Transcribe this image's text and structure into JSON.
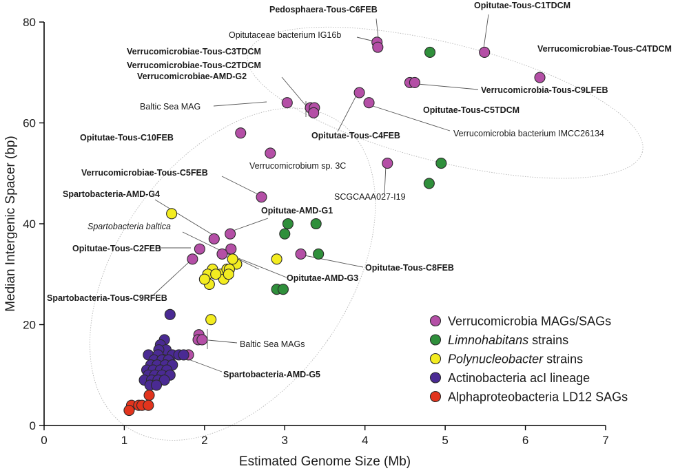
{
  "chart_data": {
    "type": "scatter",
    "xlabel": "Estimated Genome Size (Mb)",
    "ylabel": "Median Intergenic Spacer (bp)",
    "xlim": [
      0,
      7
    ],
    "ylim": [
      0,
      80
    ],
    "xticks": [
      0,
      1,
      2,
      3,
      4,
      5,
      6,
      7
    ],
    "yticks": [
      0,
      20,
      40,
      60,
      80
    ],
    "legend_position": "bottom-right",
    "colors": {
      "verruco": "#b44fa6",
      "limno": "#2f8f3b",
      "polynuc": "#f3ec20",
      "actino": "#4a2a93",
      "alpha": "#e2341d"
    },
    "series": [
      {
        "key": "verruco",
        "name": "Verrucomicrobia MAGs/SAGs",
        "points": [
          [
            4.15,
            76
          ],
          [
            4.16,
            75
          ],
          [
            5.49,
            74
          ],
          [
            6.18,
            69
          ],
          [
            4.56,
            68
          ],
          [
            4.62,
            68
          ],
          [
            3.93,
            66
          ],
          [
            4.05,
            64
          ],
          [
            3.32,
            63
          ],
          [
            3.37,
            63
          ],
          [
            3.36,
            62
          ],
          [
            3.03,
            64
          ],
          [
            2.45,
            58
          ],
          [
            2.82,
            54
          ],
          [
            4.28,
            52
          ],
          [
            2.71,
            45.3
          ],
          [
            2.32,
            38
          ],
          [
            2.12,
            37
          ],
          [
            2.33,
            35
          ],
          [
            2.22,
            34
          ],
          [
            1.94,
            35
          ],
          [
            1.85,
            33
          ],
          [
            3.2,
            34
          ],
          [
            1.93,
            18
          ],
          [
            1.92,
            17
          ],
          [
            1.97,
            17
          ],
          [
            1.8,
            14
          ]
        ]
      },
      {
        "key": "limno",
        "name": "Limnohabitans strains",
        "italic_word": "Limnohabitans",
        "points": [
          [
            4.81,
            74
          ],
          [
            4.95,
            52
          ],
          [
            4.8,
            48
          ],
          [
            3.04,
            40
          ],
          [
            3.39,
            40
          ],
          [
            3.0,
            38
          ],
          [
            3.42,
            34
          ],
          [
            2.9,
            27
          ],
          [
            2.98,
            27
          ]
        ]
      },
      {
        "key": "polynuc",
        "name": "Polynucleobacter strains",
        "italic_word": "Polynucleobacter",
        "points": [
          [
            1.59,
            42
          ],
          [
            2.4,
            32
          ],
          [
            2.35,
            33
          ],
          [
            2.1,
            31
          ],
          [
            2.04,
            30
          ],
          [
            2.2,
            30
          ],
          [
            2.28,
            31
          ],
          [
            2.06,
            28
          ],
          [
            2.31,
            31
          ],
          [
            2.0,
            29
          ],
          [
            2.24,
            29
          ],
          [
            2.14,
            30
          ],
          [
            2.3,
            30
          ],
          [
            2.9,
            33
          ],
          [
            2.08,
            21
          ]
        ]
      },
      {
        "key": "actino",
        "name": "Actinobacteria acI lineage",
        "points": [
          [
            1.57,
            22
          ],
          [
            1.5,
            17
          ],
          [
            1.45,
            16
          ],
          [
            1.52,
            15
          ],
          [
            1.43,
            15
          ],
          [
            1.6,
            14
          ],
          [
            1.68,
            14
          ],
          [
            1.74,
            14
          ],
          [
            1.3,
            14
          ],
          [
            1.42,
            14
          ],
          [
            1.37,
            13
          ],
          [
            1.47,
            13
          ],
          [
            1.55,
            13
          ],
          [
            1.33,
            12
          ],
          [
            1.41,
            12
          ],
          [
            1.51,
            12
          ],
          [
            1.6,
            12
          ],
          [
            1.28,
            11
          ],
          [
            1.36,
            11
          ],
          [
            1.45,
            11
          ],
          [
            1.53,
            11
          ],
          [
            1.3,
            10
          ],
          [
            1.38,
            10
          ],
          [
            1.47,
            10
          ],
          [
            1.57,
            10
          ],
          [
            1.25,
            9
          ],
          [
            1.34,
            9
          ],
          [
            1.42,
            9
          ],
          [
            1.5,
            9
          ],
          [
            1.32,
            8
          ],
          [
            1.4,
            8
          ]
        ]
      },
      {
        "key": "alpha",
        "name": "Alphaproteobacteria LD12 SAGs",
        "points": [
          [
            1.31,
            6
          ],
          [
            1.09,
            4
          ],
          [
            1.18,
            4
          ],
          [
            1.22,
            4
          ],
          [
            1.3,
            4
          ],
          [
            1.06,
            3
          ]
        ]
      }
    ],
    "annotations": [
      {
        "text": "Pedosphaera-Tous-C6FEB",
        "style": "bold"
      },
      {
        "text": "Opitutae-Tous-C1TDCM",
        "style": "bold"
      },
      {
        "text": "Opitutaceae bacterium IG16b",
        "style": "normal"
      },
      {
        "text": "Verrucomicrobiae-Tous-C4TDCM",
        "style": "bold"
      },
      {
        "text": "Verrucomicrobiae-Tous-C3TDCM",
        "style": "bold"
      },
      {
        "text": "Verrucomicrobiae-Tous-C2TDCM",
        "style": "bold"
      },
      {
        "text": "Verrucomicrobiae-AMD-G2",
        "style": "bold"
      },
      {
        "text": "Verrucomicrobia-Tous-C9LFEB",
        "style": "bold"
      },
      {
        "text": "Baltic Sea MAG",
        "style": "normal"
      },
      {
        "text": "Opitutae-Tous-C5TDCM",
        "style": "bold"
      },
      {
        "text": "Opitutae-Tous-C4FEB",
        "style": "bold"
      },
      {
        "text": "Verrucomicrobia bacterium IMCC26134",
        "style": "normal"
      },
      {
        "text": "Opitutae-Tous-C10FEB",
        "style": "bold"
      },
      {
        "text": "Verrucomicrobium sp. 3C",
        "style": "normal"
      },
      {
        "text": "Verrucomicrobiae-Tous-C5FEB",
        "style": "bold"
      },
      {
        "text": "SCGCAAA027-I19",
        "style": "normal"
      },
      {
        "text": "Spartobacteria-AMD-G4",
        "style": "bold"
      },
      {
        "text": "Opitutae-AMD-G1",
        "style": "bold"
      },
      {
        "text": "Spartobacteria baltica",
        "style": "italic"
      },
      {
        "text": "Opitutae-Tous-C2FEB",
        "style": "bold"
      },
      {
        "text": "Opitutae-Tous-C8FEB",
        "style": "bold"
      },
      {
        "text": "Opitutae-AMD-G3",
        "style": "bold"
      },
      {
        "text": "Spartobacteria-Tous-C9RFEB",
        "style": "bold"
      },
      {
        "text": "Baltic Sea MAGs",
        "style": "normal"
      },
      {
        "text": "Spartobacteria-AMD-G5",
        "style": "bold"
      }
    ]
  }
}
